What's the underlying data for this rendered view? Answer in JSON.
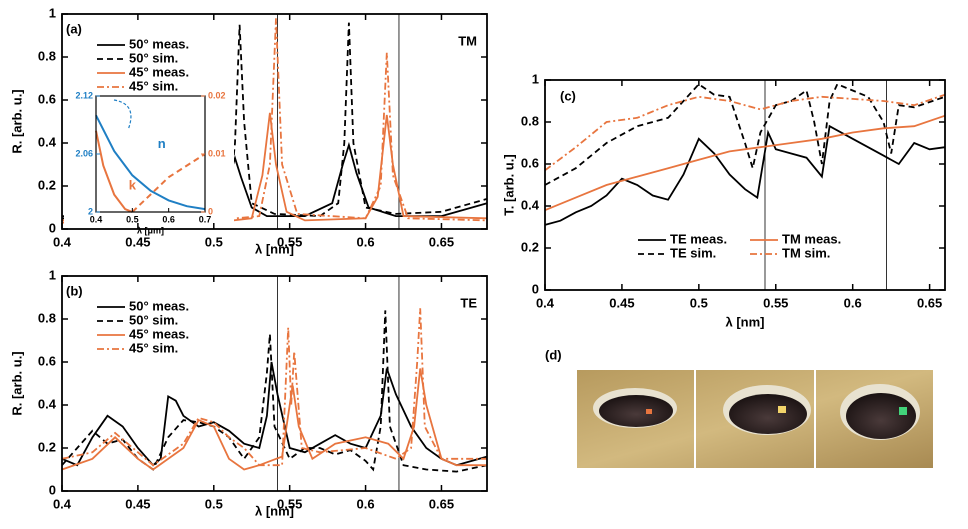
{
  "chart_data": [
    {
      "type": "line",
      "panel_label": "(a)",
      "annotation": "TM",
      "xlabel": "λ [nm]",
      "ylabel": "R. [arb. u.]",
      "xlim": [
        0.4,
        0.68
      ],
      "ylim": [
        0,
        1
      ],
      "xticks": [
        0.4,
        0.45,
        0.5,
        0.55,
        0.6,
        0.65
      ],
      "yticks": [
        0,
        0.2,
        0.4,
        0.6,
        0.8,
        1
      ],
      "vlines": [
        0.542,
        0.622
      ],
      "legend": "upper left",
      "legend_columns": 1,
      "series": [
        {
          "name": "50° meas.",
          "color": "#000000",
          "dash": "solid",
          "x": [
            0.4,
            0.44,
            0.46,
            0.48,
            0.5,
            0.507,
            0.511,
            0.514,
            0.518,
            0.525,
            0.535,
            0.56,
            0.578,
            0.585,
            0.589,
            0.594,
            0.602,
            0.62,
            0.65,
            0.68
          ],
          "values": [
            0.05,
            0.05,
            0.08,
            0.05,
            0.06,
            0.12,
            0.26,
            0.33,
            0.24,
            0.1,
            0.06,
            0.06,
            0.12,
            0.3,
            0.39,
            0.26,
            0.1,
            0.06,
            0.06,
            0.12
          ]
        },
        {
          "name": "50° sim.",
          "color": "#000000",
          "dash": "dashed",
          "x": [
            0.4,
            0.47,
            0.5,
            0.51,
            0.514,
            0.517,
            0.52,
            0.525,
            0.54,
            0.57,
            0.582,
            0.586,
            0.589,
            0.592,
            0.6,
            0.62,
            0.65,
            0.68
          ],
          "values": [
            0.06,
            0.05,
            0.06,
            0.12,
            0.4,
            0.95,
            0.5,
            0.12,
            0.07,
            0.06,
            0.12,
            0.4,
            0.96,
            0.4,
            0.1,
            0.07,
            0.08,
            0.14
          ]
        },
        {
          "name": "45° meas.",
          "color": "#e8753f",
          "dash": "solid",
          "x": [
            0.4,
            0.5,
            0.525,
            0.532,
            0.537,
            0.541,
            0.548,
            0.56,
            0.6,
            0.608,
            0.614,
            0.618,
            0.625,
            0.68
          ],
          "values": [
            0.03,
            0.03,
            0.05,
            0.25,
            0.54,
            0.3,
            0.08,
            0.04,
            0.05,
            0.15,
            0.53,
            0.3,
            0.06,
            0.05
          ]
        },
        {
          "name": "45° sim.",
          "color": "#e8753f",
          "dash": "dashdot",
          "x": [
            0.4,
            0.5,
            0.53,
            0.537,
            0.541,
            0.545,
            0.555,
            0.6,
            0.61,
            0.614,
            0.618,
            0.628,
            0.68
          ],
          "values": [
            0.04,
            0.04,
            0.06,
            0.3,
            0.98,
            0.3,
            0.07,
            0.05,
            0.2,
            0.82,
            0.25,
            0.05,
            0.04
          ]
        }
      ],
      "inset": {
        "xlabel": "λ [μm]",
        "xlim": [
          0.4,
          0.7
        ],
        "ylim": [
          2,
          2.12
        ],
        "y2lim": [
          0,
          0.02
        ],
        "xticks": [
          0.4,
          0.5,
          0.6,
          0.7
        ],
        "yticks": [
          2,
          2.06,
          2.12
        ],
        "y2ticks": [
          0,
          0.01,
          0.02
        ],
        "left_color": "#1f7fc4",
        "right_color": "#e8753f",
        "series": [
          {
            "name": "n",
            "color": "#1f7fc4",
            "dash": "solid",
            "x": [
              0.4,
              0.45,
              0.5,
              0.55,
              0.6,
              0.65,
              0.7
            ],
            "values": [
              2.1,
              2.063,
              2.038,
              2.022,
              2.012,
              2.006,
              2.003
            ]
          },
          {
            "name": "k",
            "color": "#e8753f",
            "dash": "solid",
            "axis": "y2",
            "x": [
              0.4,
              0.42,
              0.45,
              0.48,
              0.5
            ],
            "values": [
              0.014,
              0.008,
              0.003,
              0.0005,
              0
            ]
          },
          {
            "color": "#e8753f",
            "dash": "dashed",
            "axis": "y2",
            "x": [
              0.5,
              0.55,
              0.6,
              0.65,
              0.7
            ],
            "values": [
              0,
              0.003,
              0.006,
              0.008,
              0.01
            ]
          }
        ]
      }
    },
    {
      "type": "line",
      "panel_label": "(b)",
      "annotation": "TE",
      "xlabel": "λ [nm]",
      "ylabel": "R. [arb. u.]",
      "xlim": [
        0.4,
        0.68
      ],
      "ylim": [
        0,
        1
      ],
      "xticks": [
        0.4,
        0.45,
        0.5,
        0.55,
        0.6,
        0.65
      ],
      "yticks": [
        0,
        0.2,
        0.4,
        0.6,
        0.8,
        1
      ],
      "vlines": [
        0.542,
        0.622
      ],
      "legend": "upper left",
      "legend_columns": 1,
      "series": [
        {
          "name": "50° meas.",
          "color": "#000000",
          "dash": "solid",
          "x": [
            0.4,
            0.41,
            0.42,
            0.43,
            0.44,
            0.45,
            0.46,
            0.465,
            0.47,
            0.475,
            0.48,
            0.49,
            0.5,
            0.51,
            0.52,
            0.53,
            0.535,
            0.538,
            0.542,
            0.55,
            0.56,
            0.57,
            0.58,
            0.59,
            0.6,
            0.61,
            0.614,
            0.62,
            0.63,
            0.64,
            0.65,
            0.66,
            0.67,
            0.68
          ],
          "values": [
            0.15,
            0.12,
            0.25,
            0.35,
            0.3,
            0.2,
            0.12,
            0.15,
            0.44,
            0.42,
            0.35,
            0.3,
            0.32,
            0.28,
            0.22,
            0.2,
            0.35,
            0.6,
            0.45,
            0.2,
            0.18,
            0.22,
            0.26,
            0.22,
            0.2,
            0.35,
            0.57,
            0.45,
            0.3,
            0.2,
            0.15,
            0.12,
            0.14,
            0.16
          ]
        },
        {
          "name": "50° sim.",
          "color": "#000000",
          "dash": "dashed",
          "x": [
            0.4,
            0.41,
            0.42,
            0.43,
            0.44,
            0.45,
            0.46,
            0.47,
            0.48,
            0.49,
            0.5,
            0.51,
            0.52,
            0.53,
            0.535,
            0.537,
            0.54,
            0.55,
            0.56,
            0.57,
            0.58,
            0.59,
            0.6,
            0.605,
            0.61,
            0.613,
            0.616,
            0.625,
            0.64,
            0.66,
            0.68
          ],
          "values": [
            0.12,
            0.2,
            0.28,
            0.22,
            0.24,
            0.15,
            0.1,
            0.25,
            0.33,
            0.32,
            0.3,
            0.25,
            0.15,
            0.25,
            0.55,
            0.73,
            0.3,
            0.15,
            0.2,
            0.2,
            0.17,
            0.19,
            0.14,
            0.1,
            0.3,
            0.84,
            0.3,
            0.12,
            0.1,
            0.09,
            0.12
          ]
        },
        {
          "name": "45° meas.",
          "color": "#e8753f",
          "dash": "solid",
          "x": [
            0.4,
            0.42,
            0.435,
            0.45,
            0.46,
            0.48,
            0.49,
            0.5,
            0.51,
            0.52,
            0.53,
            0.545,
            0.55,
            0.552,
            0.556,
            0.565,
            0.58,
            0.6,
            0.615,
            0.625,
            0.632,
            0.636,
            0.64,
            0.65,
            0.66,
            0.68
          ],
          "values": [
            0.1,
            0.15,
            0.25,
            0.15,
            0.1,
            0.2,
            0.33,
            0.3,
            0.15,
            0.1,
            0.12,
            0.16,
            0.4,
            0.49,
            0.3,
            0.15,
            0.22,
            0.25,
            0.22,
            0.15,
            0.3,
            0.57,
            0.4,
            0.15,
            0.12,
            0.12
          ]
        },
        {
          "name": "45° sim.",
          "color": "#e8753f",
          "dash": "dashdot",
          "x": [
            0.4,
            0.42,
            0.435,
            0.45,
            0.46,
            0.48,
            0.49,
            0.5,
            0.51,
            0.52,
            0.53,
            0.545,
            0.549,
            0.551,
            0.553,
            0.558,
            0.57,
            0.6,
            0.62,
            0.63,
            0.634,
            0.636,
            0.639,
            0.65,
            0.68
          ],
          "values": [
            0.15,
            0.18,
            0.27,
            0.18,
            0.12,
            0.22,
            0.34,
            0.32,
            0.25,
            0.2,
            0.12,
            0.12,
            0.76,
            0.4,
            0.65,
            0.2,
            0.18,
            0.2,
            0.15,
            0.2,
            0.6,
            0.85,
            0.3,
            0.15,
            0.15
          ]
        }
      ]
    },
    {
      "type": "line",
      "panel_label": "(c)",
      "xlabel": "λ [nm]",
      "ylabel": "T. [arb. u.]",
      "xlim": [
        0.4,
        0.66
      ],
      "ylim": [
        0,
        1
      ],
      "xticks": [
        0.4,
        0.45,
        0.5,
        0.55,
        0.6,
        0.65
      ],
      "yticks": [
        0,
        0.2,
        0.4,
        0.6,
        0.8,
        1
      ],
      "vlines": [
        0.543,
        0.622
      ],
      "legend": "lower center",
      "legend_columns": 2,
      "series": [
        {
          "name": "TE meas.",
          "color": "#000000",
          "dash": "solid",
          "x": [
            0.4,
            0.41,
            0.42,
            0.43,
            0.44,
            0.45,
            0.46,
            0.47,
            0.48,
            0.49,
            0.5,
            0.51,
            0.52,
            0.53,
            0.538,
            0.545,
            0.55,
            0.56,
            0.57,
            0.58,
            0.585,
            0.6,
            0.62,
            0.63,
            0.64,
            0.65,
            0.66
          ],
          "values": [
            0.31,
            0.33,
            0.37,
            0.4,
            0.45,
            0.53,
            0.5,
            0.45,
            0.43,
            0.55,
            0.72,
            0.65,
            0.55,
            0.48,
            0.44,
            0.75,
            0.67,
            0.65,
            0.63,
            0.54,
            0.78,
            0.72,
            0.64,
            0.6,
            0.7,
            0.67,
            0.68
          ]
        },
        {
          "name": "TE sim.",
          "color": "#000000",
          "dash": "dashed",
          "x": [
            0.4,
            0.42,
            0.44,
            0.46,
            0.48,
            0.49,
            0.5,
            0.51,
            0.52,
            0.53,
            0.535,
            0.54,
            0.55,
            0.56,
            0.57,
            0.575,
            0.58,
            0.585,
            0.59,
            0.6,
            0.61,
            0.62,
            0.625,
            0.63,
            0.64,
            0.66
          ],
          "values": [
            0.5,
            0.58,
            0.7,
            0.78,
            0.82,
            0.9,
            0.98,
            0.93,
            0.92,
            0.7,
            0.58,
            0.75,
            0.88,
            0.9,
            0.95,
            0.8,
            0.6,
            0.9,
            0.98,
            0.95,
            0.92,
            0.8,
            0.65,
            0.88,
            0.87,
            0.92
          ]
        },
        {
          "name": "TM meas.",
          "color": "#e8753f",
          "dash": "solid",
          "x": [
            0.4,
            0.42,
            0.44,
            0.46,
            0.48,
            0.5,
            0.52,
            0.54,
            0.56,
            0.58,
            0.6,
            0.62,
            0.64,
            0.66
          ],
          "values": [
            0.38,
            0.44,
            0.5,
            0.54,
            0.58,
            0.62,
            0.66,
            0.68,
            0.7,
            0.72,
            0.75,
            0.77,
            0.78,
            0.83
          ]
        },
        {
          "name": "TM sim.",
          "color": "#e8753f",
          "dash": "dashdot",
          "x": [
            0.4,
            0.42,
            0.44,
            0.46,
            0.48,
            0.5,
            0.52,
            0.53,
            0.54,
            0.56,
            0.58,
            0.6,
            0.62,
            0.64,
            0.66
          ],
          "values": [
            0.57,
            0.68,
            0.8,
            0.82,
            0.88,
            0.92,
            0.9,
            0.88,
            0.86,
            0.9,
            0.92,
            0.91,
            0.9,
            0.88,
            0.93
          ]
        }
      ]
    }
  ],
  "photos": {
    "label": "(d)"
  }
}
